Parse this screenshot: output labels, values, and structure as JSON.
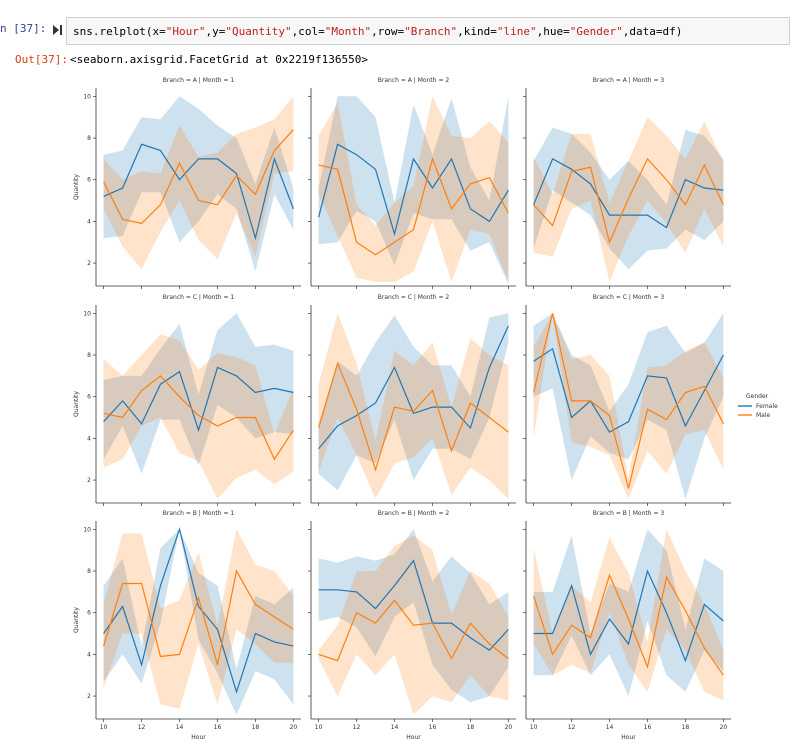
{
  "cell": {
    "in_prompt": "n [37]:",
    "code_parts": [
      {
        "t": "sns.relplot(x=",
        "c": "kw"
      },
      {
        "t": "\"Hour\"",
        "c": "str"
      },
      {
        "t": ",y=",
        "c": "kw"
      },
      {
        "t": "\"Quantity\"",
        "c": "str"
      },
      {
        "t": ",col=",
        "c": "kw"
      },
      {
        "t": "\"Month\"",
        "c": "str"
      },
      {
        "t": ",row=",
        "c": "kw"
      },
      {
        "t": "\"Branch\"",
        "c": "str"
      },
      {
        "t": ",kind=",
        "c": "kw"
      },
      {
        "t": "\"line\"",
        "c": "str"
      },
      {
        "t": ",hue=",
        "c": "kw"
      },
      {
        "t": "\"Gender\"",
        "c": "str"
      },
      {
        "t": ",data=df)",
        "c": "kw"
      }
    ],
    "out_prompt": "Out[37]:",
    "out_text": "<seaborn.axisgrid.FacetGrid at 0x2219f136550>",
    "run_icon": "step-run-icon"
  },
  "chart_data": {
    "type": "line",
    "xlabel": "Hour",
    "ylabel": "Quantity",
    "xlim": [
      9.6,
      20.4
    ],
    "ylim": [
      0.9,
      10.4
    ],
    "xticks": [
      10,
      12,
      14,
      16,
      18,
      20
    ],
    "yticks": [
      2,
      4,
      6,
      8,
      10
    ],
    "x": [
      10,
      11,
      12,
      13,
      14,
      15,
      16,
      17,
      18,
      19,
      20
    ],
    "grid": false,
    "legend": {
      "title": "Gender",
      "entries": [
        {
          "name": "Female",
          "color": "#1f77b4"
        },
        {
          "name": "Male",
          "color": "#ff7f0e"
        }
      ],
      "placement": "right"
    },
    "colors": {
      "Female": "#1f77b4",
      "Male": "#ff7f0e"
    },
    "facets": [
      {
        "title": "Branch = A | Month = 1",
        "row": 0,
        "col": 0,
        "series": [
          {
            "name": "Female",
            "values": [
              5.2,
              5.6,
              7.7,
              7.4,
              6.0,
              7.0,
              7.0,
              6.3,
              3.2,
              7.0,
              4.6
            ],
            "lower": [
              3.2,
              3.3,
              5.4,
              5.4,
              3.0,
              4.0,
              5.3,
              4.6,
              1.6,
              5.3,
              3.6
            ],
            "upper": [
              7.2,
              7.4,
              9.0,
              8.9,
              10.0,
              9.4,
              8.6,
              8.0,
              5.8,
              8.5,
              5.6
            ]
          },
          {
            "name": "Male",
            "values": [
              5.9,
              4.1,
              3.9,
              4.8,
              6.8,
              5.0,
              4.8,
              6.2,
              5.3,
              7.4,
              8.4
            ],
            "lower": [
              4.6,
              2.8,
              1.7,
              3.5,
              5.0,
              3.1,
              2.2,
              4.4,
              2.3,
              6.3,
              6.4
            ],
            "upper": [
              7.0,
              6.0,
              6.4,
              6.3,
              8.6,
              7.1,
              7.3,
              8.2,
              8.5,
              8.9,
              10.0
            ]
          }
        ]
      },
      {
        "title": "Branch = A | Month = 2",
        "row": 0,
        "col": 1,
        "series": [
          {
            "name": "Female",
            "values": [
              4.2,
              7.7,
              7.2,
              6.5,
              3.4,
              7.0,
              5.6,
              7.0,
              4.6,
              4.0,
              5.5
            ],
            "lower": [
              2.9,
              3.0,
              4.5,
              4.0,
              1.9,
              4.4,
              4.1,
              4.1,
              2.6,
              3.0,
              1.0
            ],
            "upper": [
              5.6,
              10.0,
              10.0,
              9.0,
              4.9,
              9.6,
              7.2,
              9.9,
              6.6,
              5.0,
              10.0
            ]
          },
          {
            "name": "Male",
            "values": [
              6.7,
              6.5,
              3.0,
              2.4,
              3.0,
              3.6,
              7.0,
              4.6,
              5.8,
              6.1,
              4.4
            ],
            "lower": [
              5.3,
              3.3,
              1.3,
              1.1,
              1.1,
              1.6,
              4.0,
              1.1,
              3.6,
              3.4,
              1.1
            ],
            "upper": [
              8.1,
              9.7,
              4.8,
              3.8,
              4.9,
              5.7,
              10.0,
              8.1,
              8.0,
              8.8,
              7.8
            ]
          }
        ]
      },
      {
        "title": "Branch = A | Month = 3",
        "row": 0,
        "col": 2,
        "series": [
          {
            "name": "Female",
            "values": [
              4.8,
              7.0,
              6.5,
              5.8,
              4.3,
              4.3,
              4.3,
              3.7,
              6.0,
              5.6,
              5.5
            ],
            "lower": [
              2.7,
              5.5,
              4.9,
              4.3,
              2.7,
              1.7,
              2.6,
              2.7,
              3.6,
              3.1,
              4.0
            ],
            "upper": [
              6.9,
              8.5,
              8.2,
              7.3,
              6.0,
              6.9,
              6.0,
              4.8,
              8.4,
              8.1,
              7.0
            ]
          },
          {
            "name": "Male",
            "values": [
              4.8,
              3.8,
              6.4,
              6.6,
              3.0,
              5.1,
              7.0,
              6.0,
              4.8,
              6.7,
              4.8
            ],
            "lower": [
              2.5,
              2.3,
              4.6,
              5.0,
              1.1,
              3.3,
              5.0,
              3.9,
              2.5,
              4.6,
              2.8
            ],
            "upper": [
              7.1,
              5.3,
              8.2,
              8.2,
              4.9,
              6.9,
              9.0,
              8.1,
              7.0,
              8.8,
              6.8
            ]
          }
        ]
      },
      {
        "title": "Branch = C | Month = 1",
        "row": 1,
        "col": 0,
        "series": [
          {
            "name": "Female",
            "values": [
              4.8,
              5.8,
              4.7,
              6.6,
              7.2,
              4.4,
              7.4,
              7.0,
              6.2,
              6.4,
              6.2
            ],
            "lower": [
              3.0,
              4.6,
              2.3,
              4.9,
              4.9,
              2.7,
              5.6,
              5.0,
              4.0,
              4.3,
              4.2
            ],
            "upper": [
              6.8,
              7.0,
              7.0,
              8.3,
              9.5,
              6.1,
              9.2,
              10.0,
              8.4,
              8.5,
              8.2
            ]
          },
          {
            "name": "Male",
            "values": [
              5.2,
              5.0,
              6.3,
              7.0,
              6.0,
              5.1,
              4.6,
              5.0,
              5.0,
              3.0,
              4.4
            ],
            "lower": [
              2.6,
              3.0,
              4.6,
              5.0,
              3.3,
              2.9,
              1.1,
              2.1,
              2.5,
              1.8,
              2.4
            ],
            "upper": [
              7.8,
              7.0,
              8.0,
              9.0,
              8.7,
              7.3,
              8.1,
              7.9,
              7.5,
              4.2,
              6.4
            ]
          }
        ]
      },
      {
        "title": "Branch = C | Month = 2",
        "row": 1,
        "col": 1,
        "series": [
          {
            "name": "Female",
            "values": [
              3.5,
              4.6,
              5.1,
              5.7,
              7.4,
              5.2,
              5.5,
              5.5,
              4.5,
              7.4,
              9.4
            ],
            "lower": [
              2.3,
              1.5,
              3.2,
              2.8,
              4.9,
              2.0,
              3.5,
              3.5,
              3.0,
              5.0,
              8.6
            ],
            "upper": [
              4.7,
              7.7,
              7.0,
              8.6,
              9.9,
              8.4,
              7.5,
              7.5,
              6.0,
              9.8,
              10.0
            ]
          },
          {
            "name": "Male",
            "values": [
              4.5,
              7.6,
              5.4,
              2.5,
              5.5,
              5.3,
              6.3,
              3.4,
              5.7,
              5.0,
              4.3
            ],
            "lower": [
              2.4,
              5.0,
              3.2,
              1.1,
              2.8,
              3.1,
              4.0,
              1.3,
              2.6,
              2.0,
              1.1
            ],
            "upper": [
              6.6,
              10.0,
              7.6,
              3.9,
              8.2,
              7.5,
              8.6,
              5.5,
              8.8,
              8.0,
              7.5
            ]
          }
        ]
      },
      {
        "title": "Branch = C | Month = 3",
        "row": 1,
        "col": 2,
        "series": [
          {
            "name": "Female",
            "values": [
              7.7,
              8.3,
              5.0,
              5.8,
              4.3,
              4.8,
              7.0,
              6.9,
              4.6,
              6.3,
              8.0
            ],
            "lower": [
              6.0,
              6.4,
              2.0,
              4.1,
              3.3,
              3.0,
              4.9,
              4.4,
              1.1,
              4.0,
              6.0
            ],
            "upper": [
              9.4,
              10.0,
              8.0,
              7.5,
              5.3,
              6.6,
              9.1,
              9.4,
              8.1,
              8.6,
              10.0
            ]
          },
          {
            "name": "Male",
            "values": [
              6.2,
              10.0,
              5.8,
              5.8,
              5.1,
              1.6,
              5.4,
              4.9,
              6.2,
              6.5,
              4.7
            ],
            "lower": [
              4.0,
              10.0,
              3.8,
              3.6,
              3.2,
              1.1,
              3.4,
              2.3,
              4.2,
              4.4,
              2.5
            ],
            "upper": [
              8.4,
              10.0,
              7.8,
              8.0,
              7.0,
              2.1,
              7.4,
              7.5,
              8.2,
              8.6,
              6.9
            ]
          }
        ]
      },
      {
        "title": "Branch = B | Month = 1",
        "row": 2,
        "col": 0,
        "series": [
          {
            "name": "Female",
            "values": [
              5.0,
              6.3,
              3.5,
              7.3,
              10.0,
              6.3,
              5.2,
              2.2,
              5.0,
              4.6,
              4.4
            ],
            "lower": [
              2.7,
              4.0,
              2.6,
              5.5,
              10.0,
              4.7,
              3.1,
              1.1,
              3.2,
              2.8,
              1.6
            ],
            "upper": [
              7.3,
              8.6,
              4.4,
              9.1,
              10.0,
              7.9,
              7.3,
              3.3,
              6.8,
              6.4,
              7.2
            ]
          },
          {
            "name": "Male",
            "values": [
              4.4,
              7.4,
              7.4,
              3.9,
              4.0,
              6.7,
              3.5,
              8.0,
              6.4,
              5.8,
              5.2
            ],
            "lower": [
              2.4,
              5.0,
              5.0,
              1.6,
              1.4,
              4.5,
              1.6,
              5.2,
              4.5,
              3.6,
              3.6
            ],
            "upper": [
              6.4,
              9.8,
              9.8,
              6.2,
              6.6,
              8.9,
              5.4,
              10.0,
              8.3,
              8.0,
              6.8
            ]
          }
        ]
      },
      {
        "title": "Branch = B | Month = 2",
        "row": 2,
        "col": 1,
        "series": [
          {
            "name": "Female",
            "values": [
              7.1,
              7.1,
              7.0,
              6.2,
              7.3,
              8.5,
              5.5,
              5.5,
              4.8,
              4.2,
              5.2
            ],
            "lower": [
              5.6,
              5.8,
              5.3,
              3.9,
              5.8,
              6.5,
              3.5,
              2.3,
              1.7,
              2.0,
              3.4
            ],
            "upper": [
              8.6,
              8.4,
              8.7,
              8.5,
              8.8,
              10.0,
              7.5,
              8.7,
              7.9,
              6.4,
              7.0
            ]
          },
          {
            "name": "Male",
            "values": [
              4.0,
              3.7,
              6.0,
              5.5,
              6.6,
              5.4,
              5.5,
              3.8,
              5.5,
              4.5,
              3.8
            ],
            "lower": [
              3.8,
              2.0,
              4.0,
              3.0,
              4.0,
              1.1,
              2.0,
              1.7,
              3.0,
              2.0,
              1.8
            ],
            "upper": [
              4.2,
              5.4,
              8.0,
              8.0,
              9.2,
              9.7,
              9.0,
              5.9,
              8.0,
              7.4,
              5.8
            ]
          }
        ]
      },
      {
        "title": "Branch = B | Month = 3",
        "row": 2,
        "col": 2,
        "series": [
          {
            "name": "Female",
            "values": [
              5.0,
              5.0,
              7.3,
              4.0,
              5.7,
              4.5,
              8.0,
              6.0,
              3.7,
              6.4,
              5.6
            ],
            "lower": [
              3.0,
              3.0,
              4.9,
              3.0,
              4.0,
              2.0,
              5.6,
              3.0,
              2.2,
              4.2,
              3.2
            ],
            "upper": [
              7.0,
              7.0,
              9.7,
              5.0,
              7.4,
              7.0,
              10.0,
              9.0,
              5.2,
              8.6,
              8.0
            ]
          },
          {
            "name": "Male",
            "values": [
              6.8,
              4.0,
              5.4,
              4.8,
              7.8,
              5.7,
              3.4,
              7.7,
              6.1,
              4.3,
              3.0
            ],
            "lower": [
              4.5,
              3.0,
              3.5,
              3.1,
              6.0,
              3.5,
              2.2,
              5.2,
              4.2,
              2.2,
              1.8
            ],
            "upper": [
              9.1,
              5.0,
              7.3,
              6.5,
              9.6,
              7.9,
              4.6,
              10.0,
              8.0,
              6.4,
              4.2
            ]
          }
        ]
      }
    ]
  }
}
